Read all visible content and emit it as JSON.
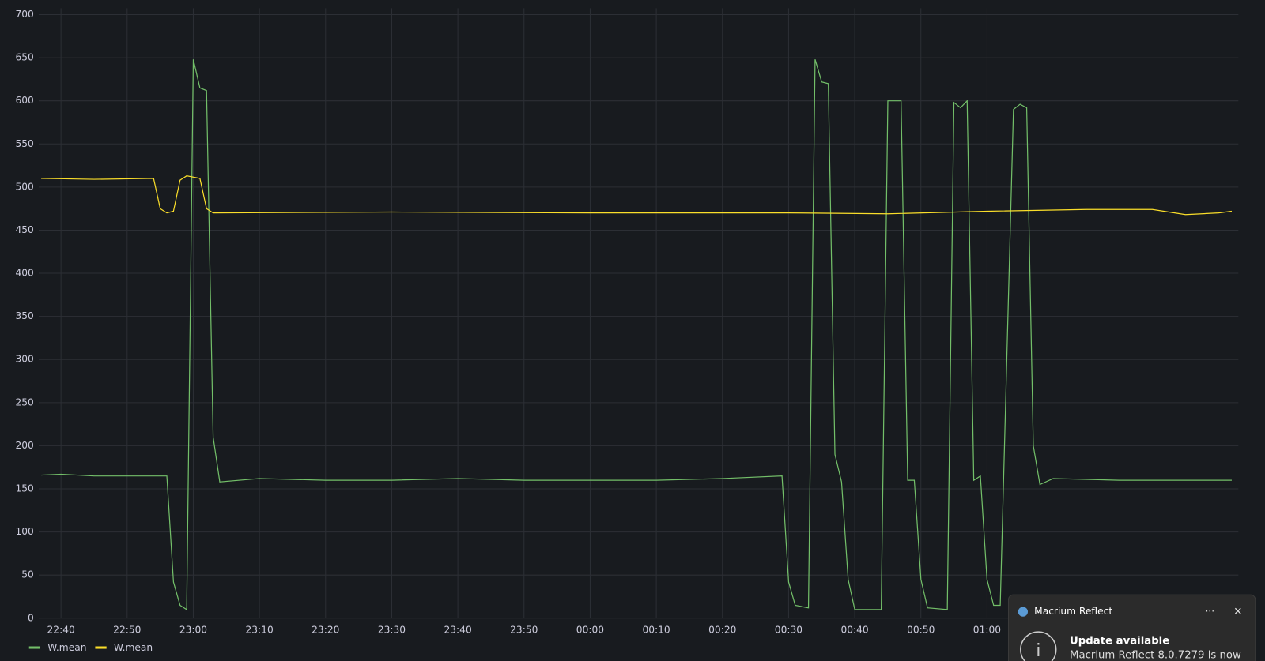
{
  "chart_data": {
    "type": "line",
    "series": [
      {
        "name": "W.mean",
        "color": "#73bf69",
        "x": [
          "22:37",
          "22:40",
          "22:45",
          "22:50",
          "22:55",
          "22:56",
          "22:57",
          "22:58",
          "22:59",
          "23:00",
          "23:01",
          "23:02",
          "23:03",
          "23:04",
          "23:10",
          "23:20",
          "23:30",
          "23:40",
          "23:50",
          "00:00",
          "00:10",
          "00:20",
          "00:29",
          "00:30",
          "00:31",
          "00:33",
          "00:34",
          "00:35",
          "00:36",
          "00:37",
          "00:38",
          "00:39",
          "00:40",
          "00:44",
          "00:45",
          "00:46",
          "00:47",
          "00:48",
          "00:49",
          "00:50",
          "00:51",
          "00:54",
          "00:55",
          "00:56",
          "00:57",
          "00:58",
          "00:59",
          "01:00",
          "01:01",
          "01:02",
          "01:04",
          "01:05",
          "01:06",
          "01:07",
          "01:08",
          "01:10",
          "01:20",
          "01:30",
          "01:37"
        ],
        "values": [
          166,
          167,
          165,
          165,
          165,
          165,
          42,
          15,
          10,
          648,
          615,
          612,
          210,
          158,
          162,
          160,
          160,
          162,
          160,
          160,
          160,
          162,
          165,
          42,
          15,
          12,
          648,
          622,
          620,
          190,
          158,
          45,
          10,
          10,
          600,
          600,
          600,
          160,
          160,
          45,
          12,
          10,
          598,
          592,
          600,
          160,
          165,
          45,
          15,
          15,
          590,
          596,
          592,
          200,
          155,
          162,
          160,
          160,
          160
        ]
      },
      {
        "name": "W.mean",
        "color": "#fade2a",
        "x": [
          "22:37",
          "22:45",
          "22:54",
          "22:55",
          "22:56",
          "22:57",
          "22:58",
          "22:59",
          "23:01",
          "23:02",
          "23:03",
          "23:30",
          "00:00",
          "00:30",
          "00:45",
          "01:00",
          "01:15",
          "01:25",
          "01:30",
          "01:35",
          "01:37"
        ],
        "values": [
          510,
          509,
          510,
          475,
          470,
          472,
          508,
          513,
          510,
          475,
          470,
          471,
          470,
          470,
          469,
          472,
          474,
          474,
          468,
          470,
          472
        ]
      }
    ],
    "xlim": [
      "22:37",
      "01:38"
    ],
    "xticks": [
      "22:40",
      "22:50",
      "23:00",
      "23:10",
      "23:20",
      "23:30",
      "23:40",
      "23:50",
      "00:00",
      "00:10",
      "00:20",
      "00:30",
      "00:40",
      "00:50",
      "01:00"
    ],
    "ylim": [
      0,
      700
    ],
    "yticks": [
      0,
      50,
      100,
      150,
      200,
      250,
      300,
      350,
      400,
      450,
      500,
      550,
      600,
      650,
      700
    ],
    "grid": true
  },
  "notification": {
    "app": "Macrium Reflect",
    "title": "Update available",
    "body": "Macrium Reflect 8.0.7279 is now"
  }
}
